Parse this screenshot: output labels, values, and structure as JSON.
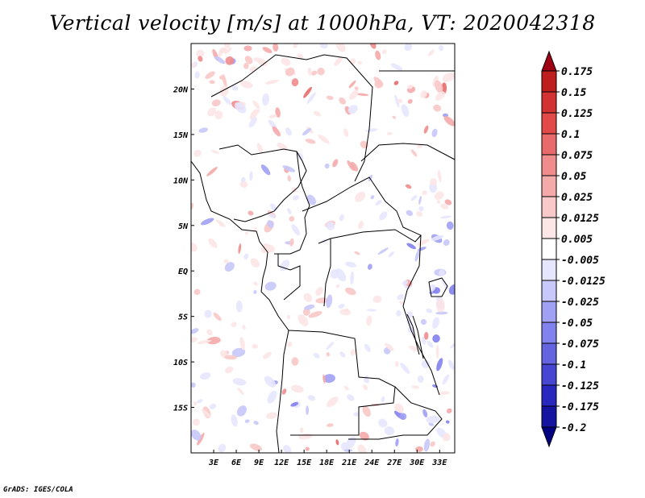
{
  "title": "Vertical velocity [m/s] at 1000hPa, VT: 2020042318",
  "credit": "GrADS: IGES/COLA",
  "chart_data": {
    "type": "heatmap",
    "title": "Vertical velocity [m/s] at 1000hPa, VT: 2020042318",
    "variable": "Vertical velocity",
    "units": "m/s",
    "level": "1000hPa",
    "valid_time": "2020042318",
    "lon_range": [
      0,
      35
    ],
    "lat_range": [
      -20,
      25
    ],
    "x_tick_labels": [
      "3E",
      "6E",
      "9E",
      "12E",
      "15E",
      "18E",
      "21E",
      "24E",
      "27E",
      "30E",
      "33E"
    ],
    "x_tick_values": [
      3,
      6,
      9,
      12,
      15,
      18,
      21,
      24,
      27,
      30,
      33
    ],
    "y_tick_labels": [
      "20N",
      "15N",
      "10N",
      "5N",
      "EQ",
      "5S",
      "10S",
      "15S"
    ],
    "y_tick_values": [
      20,
      15,
      10,
      5,
      0,
      -5,
      -10,
      -15
    ],
    "colorbar": {
      "labels": [
        "0.175",
        "0.15",
        "0.125",
        "0.1",
        "0.075",
        "0.05",
        "0.025",
        "0.0125",
        "0.005",
        "-0.005",
        "-0.0125",
        "-0.025",
        "-0.05",
        "-0.075",
        "-0.1",
        "-0.125",
        "-0.175",
        "-0.2"
      ],
      "colors": [
        "#a00014",
        "#be1e1e",
        "#d23232",
        "#e24a4a",
        "#e86a6a",
        "#f08c8c",
        "#f5aaaa",
        "#f9c8c8",
        "#fce6e6",
        "#ffffff",
        "#e6e6ff",
        "#c8c8fa",
        "#a0a0f5",
        "#8282ee",
        "#6464e0",
        "#4646d2",
        "#2828be",
        "#1414a0",
        "#000080"
      ]
    }
  }
}
